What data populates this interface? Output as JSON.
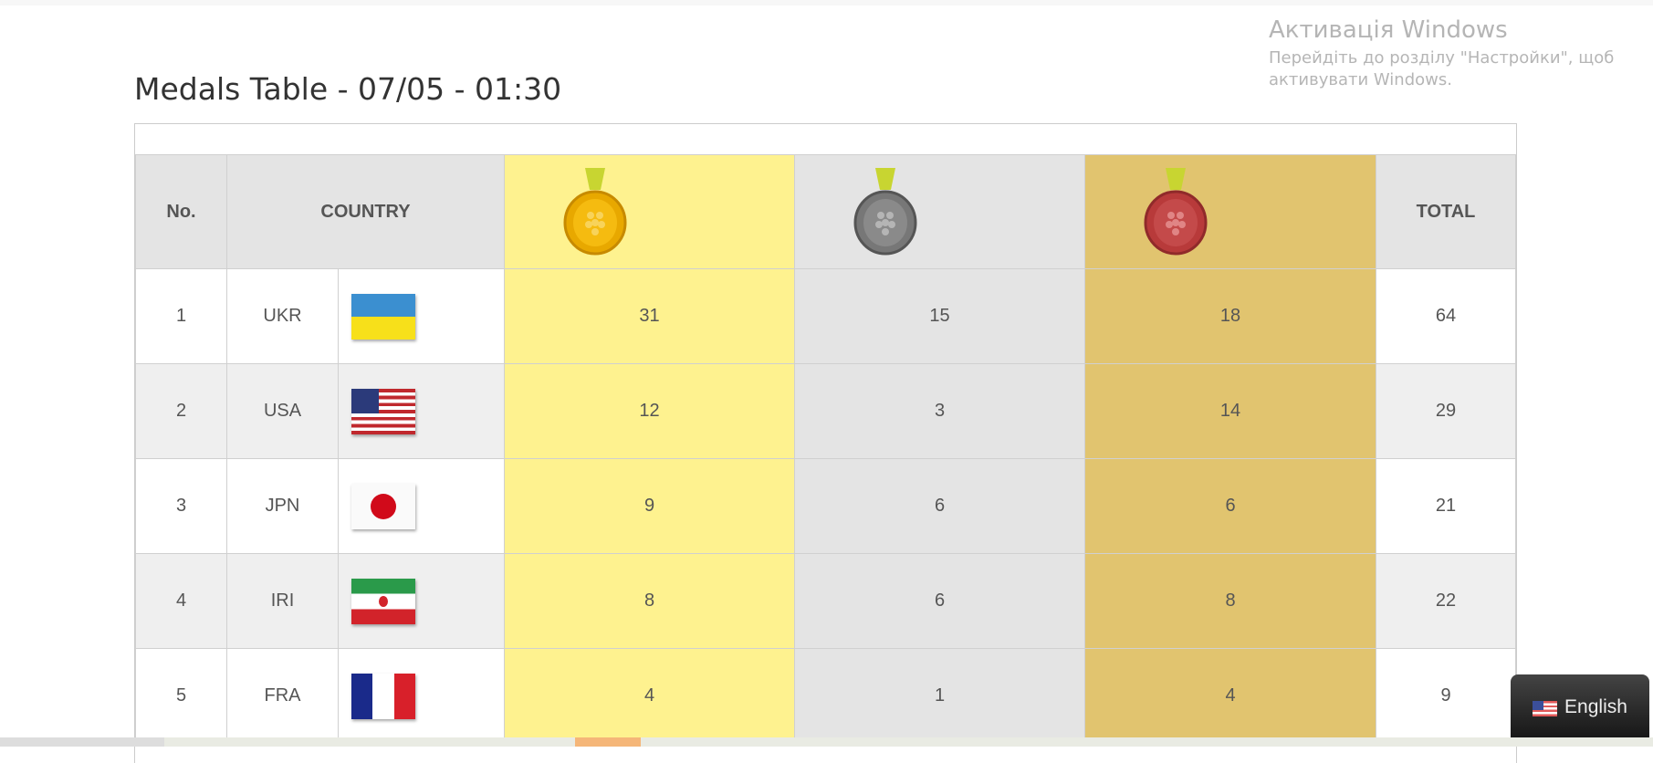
{
  "title": "Medals Table - 07/05 - 01:30",
  "headers": {
    "no": "No.",
    "country": "COUNTRY",
    "gold": "gold-medal-icon",
    "silver": "silver-medal-icon",
    "bronze": "bronze-medal-icon",
    "total": "TOTAL"
  },
  "rows": [
    {
      "no": "1",
      "code": "UKR",
      "flag": "ukraine-flag",
      "gold": "31",
      "silver": "15",
      "bronze": "18",
      "total": "64"
    },
    {
      "no": "2",
      "code": "USA",
      "flag": "usa-flag",
      "gold": "12",
      "silver": "3",
      "bronze": "14",
      "total": "29"
    },
    {
      "no": "3",
      "code": "JPN",
      "flag": "japan-flag",
      "gold": "9",
      "silver": "6",
      "bronze": "6",
      "total": "21"
    },
    {
      "no": "4",
      "code": "IRI",
      "flag": "iran-flag",
      "gold": "8",
      "silver": "6",
      "bronze": "8",
      "total": "22"
    },
    {
      "no": "5",
      "code": "FRA",
      "flag": "france-flag",
      "gold": "4",
      "silver": "1",
      "bronze": "4",
      "total": "9"
    }
  ],
  "colors": {
    "gold_col": "#fef28f",
    "silver_col": "#e4e4e4",
    "bronze_col": "#e1c46f"
  },
  "watermark": {
    "line1": "Активація Windows",
    "line2": "Перейдіть до розділу \"Настройки\", щоб",
    "line3": "активувати Windows."
  },
  "language": {
    "label": "English",
    "icon": "usa-flag-icon"
  }
}
